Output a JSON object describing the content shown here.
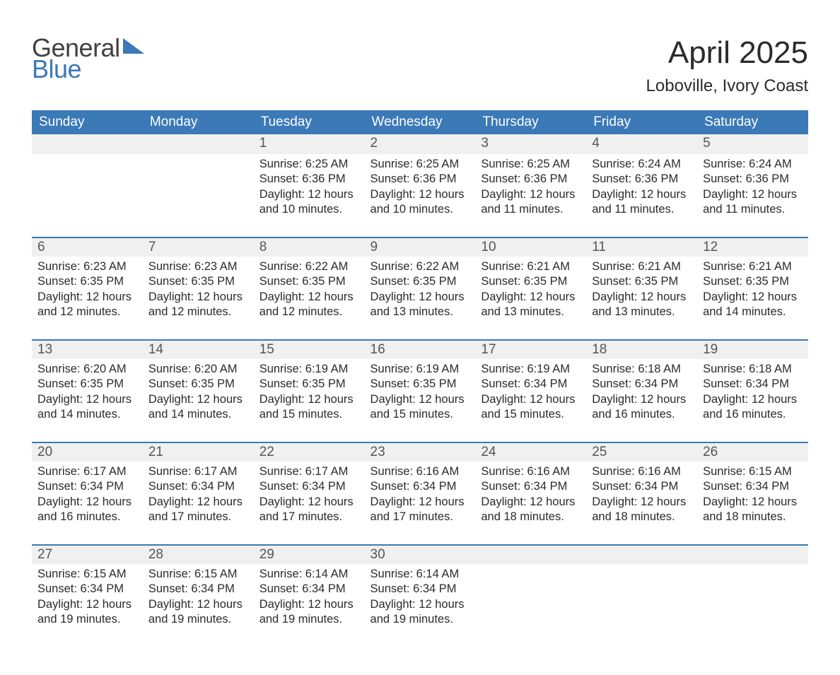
{
  "logo": {
    "general": "General",
    "blue": "Blue",
    "brand_color": "#3b79b7"
  },
  "title": "April 2025",
  "location": "Loboville, Ivory Coast",
  "columns": [
    "Sunday",
    "Monday",
    "Tuesday",
    "Wednesday",
    "Thursday",
    "Friday",
    "Saturday"
  ],
  "colors": {
    "header_bg": "#3b79b7",
    "header_text": "#ffffff",
    "daynum_bg": "#f0f0f0",
    "daynum_border": "#3b79b7",
    "page_bg": "#ffffff",
    "text": "#2b2b2b"
  },
  "weeks": [
    [
      {
        "day": "",
        "sunrise": "",
        "sunset": "",
        "daylight": ""
      },
      {
        "day": "",
        "sunrise": "",
        "sunset": "",
        "daylight": ""
      },
      {
        "day": "1",
        "sunrise": "Sunrise: 6:25 AM",
        "sunset": "Sunset: 6:36 PM",
        "daylight": "Daylight: 12 hours and 10 minutes."
      },
      {
        "day": "2",
        "sunrise": "Sunrise: 6:25 AM",
        "sunset": "Sunset: 6:36 PM",
        "daylight": "Daylight: 12 hours and 10 minutes."
      },
      {
        "day": "3",
        "sunrise": "Sunrise: 6:25 AM",
        "sunset": "Sunset: 6:36 PM",
        "daylight": "Daylight: 12 hours and 11 minutes."
      },
      {
        "day": "4",
        "sunrise": "Sunrise: 6:24 AM",
        "sunset": "Sunset: 6:36 PM",
        "daylight": "Daylight: 12 hours and 11 minutes."
      },
      {
        "day": "5",
        "sunrise": "Sunrise: 6:24 AM",
        "sunset": "Sunset: 6:36 PM",
        "daylight": "Daylight: 12 hours and 11 minutes."
      }
    ],
    [
      {
        "day": "6",
        "sunrise": "Sunrise: 6:23 AM",
        "sunset": "Sunset: 6:35 PM",
        "daylight": "Daylight: 12 hours and 12 minutes."
      },
      {
        "day": "7",
        "sunrise": "Sunrise: 6:23 AM",
        "sunset": "Sunset: 6:35 PM",
        "daylight": "Daylight: 12 hours and 12 minutes."
      },
      {
        "day": "8",
        "sunrise": "Sunrise: 6:22 AM",
        "sunset": "Sunset: 6:35 PM",
        "daylight": "Daylight: 12 hours and 12 minutes."
      },
      {
        "day": "9",
        "sunrise": "Sunrise: 6:22 AM",
        "sunset": "Sunset: 6:35 PM",
        "daylight": "Daylight: 12 hours and 13 minutes."
      },
      {
        "day": "10",
        "sunrise": "Sunrise: 6:21 AM",
        "sunset": "Sunset: 6:35 PM",
        "daylight": "Daylight: 12 hours and 13 minutes."
      },
      {
        "day": "11",
        "sunrise": "Sunrise: 6:21 AM",
        "sunset": "Sunset: 6:35 PM",
        "daylight": "Daylight: 12 hours and 13 minutes."
      },
      {
        "day": "12",
        "sunrise": "Sunrise: 6:21 AM",
        "sunset": "Sunset: 6:35 PM",
        "daylight": "Daylight: 12 hours and 14 minutes."
      }
    ],
    [
      {
        "day": "13",
        "sunrise": "Sunrise: 6:20 AM",
        "sunset": "Sunset: 6:35 PM",
        "daylight": "Daylight: 12 hours and 14 minutes."
      },
      {
        "day": "14",
        "sunrise": "Sunrise: 6:20 AM",
        "sunset": "Sunset: 6:35 PM",
        "daylight": "Daylight: 12 hours and 14 minutes."
      },
      {
        "day": "15",
        "sunrise": "Sunrise: 6:19 AM",
        "sunset": "Sunset: 6:35 PM",
        "daylight": "Daylight: 12 hours and 15 minutes."
      },
      {
        "day": "16",
        "sunrise": "Sunrise: 6:19 AM",
        "sunset": "Sunset: 6:35 PM",
        "daylight": "Daylight: 12 hours and 15 minutes."
      },
      {
        "day": "17",
        "sunrise": "Sunrise: 6:19 AM",
        "sunset": "Sunset: 6:34 PM",
        "daylight": "Daylight: 12 hours and 15 minutes."
      },
      {
        "day": "18",
        "sunrise": "Sunrise: 6:18 AM",
        "sunset": "Sunset: 6:34 PM",
        "daylight": "Daylight: 12 hours and 16 minutes."
      },
      {
        "day": "19",
        "sunrise": "Sunrise: 6:18 AM",
        "sunset": "Sunset: 6:34 PM",
        "daylight": "Daylight: 12 hours and 16 minutes."
      }
    ],
    [
      {
        "day": "20",
        "sunrise": "Sunrise: 6:17 AM",
        "sunset": "Sunset: 6:34 PM",
        "daylight": "Daylight: 12 hours and 16 minutes."
      },
      {
        "day": "21",
        "sunrise": "Sunrise: 6:17 AM",
        "sunset": "Sunset: 6:34 PM",
        "daylight": "Daylight: 12 hours and 17 minutes."
      },
      {
        "day": "22",
        "sunrise": "Sunrise: 6:17 AM",
        "sunset": "Sunset: 6:34 PM",
        "daylight": "Daylight: 12 hours and 17 minutes."
      },
      {
        "day": "23",
        "sunrise": "Sunrise: 6:16 AM",
        "sunset": "Sunset: 6:34 PM",
        "daylight": "Daylight: 12 hours and 17 minutes."
      },
      {
        "day": "24",
        "sunrise": "Sunrise: 6:16 AM",
        "sunset": "Sunset: 6:34 PM",
        "daylight": "Daylight: 12 hours and 18 minutes."
      },
      {
        "day": "25",
        "sunrise": "Sunrise: 6:16 AM",
        "sunset": "Sunset: 6:34 PM",
        "daylight": "Daylight: 12 hours and 18 minutes."
      },
      {
        "day": "26",
        "sunrise": "Sunrise: 6:15 AM",
        "sunset": "Sunset: 6:34 PM",
        "daylight": "Daylight: 12 hours and 18 minutes."
      }
    ],
    [
      {
        "day": "27",
        "sunrise": "Sunrise: 6:15 AM",
        "sunset": "Sunset: 6:34 PM",
        "daylight": "Daylight: 12 hours and 19 minutes."
      },
      {
        "day": "28",
        "sunrise": "Sunrise: 6:15 AM",
        "sunset": "Sunset: 6:34 PM",
        "daylight": "Daylight: 12 hours and 19 minutes."
      },
      {
        "day": "29",
        "sunrise": "Sunrise: 6:14 AM",
        "sunset": "Sunset: 6:34 PM",
        "daylight": "Daylight: 12 hours and 19 minutes."
      },
      {
        "day": "30",
        "sunrise": "Sunrise: 6:14 AM",
        "sunset": "Sunset: 6:34 PM",
        "daylight": "Daylight: 12 hours and 19 minutes."
      },
      {
        "day": "",
        "sunrise": "",
        "sunset": "",
        "daylight": ""
      },
      {
        "day": "",
        "sunrise": "",
        "sunset": "",
        "daylight": ""
      },
      {
        "day": "",
        "sunrise": "",
        "sunset": "",
        "daylight": ""
      }
    ]
  ]
}
